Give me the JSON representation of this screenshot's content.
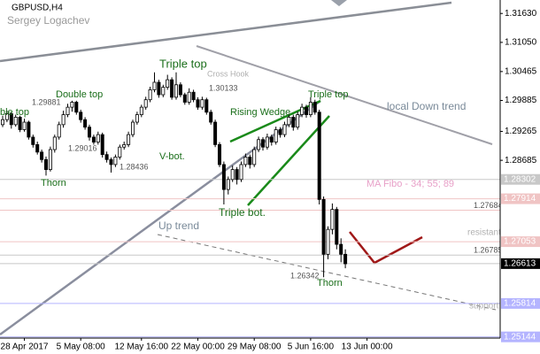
{
  "chart_data": {
    "type": "candlestick",
    "title": "GBPUSD,H4",
    "subtitle": "Sergey Logachev",
    "categories": [
      null,
      null,
      null,
      null,
      null,
      "28 Apr 2017",
      null,
      null,
      null,
      null,
      null,
      null,
      null,
      null,
      null,
      null,
      null,
      null,
      "5 May 08:00",
      null,
      null,
      null,
      null,
      null,
      null,
      null,
      null,
      null,
      null,
      null,
      null,
      null,
      "12 May 16:00",
      null,
      null,
      null,
      null,
      null,
      null,
      null,
      null,
      null,
      null,
      null,
      null,
      "22 May 00:00",
      null,
      null,
      null,
      null,
      null,
      null,
      null,
      null,
      null,
      null,
      null,
      null,
      "29 May 08:00",
      null,
      null,
      null,
      null,
      null,
      null,
      null,
      null,
      null,
      null,
      null,
      null,
      "5 Jun 16:00",
      null,
      null,
      null,
      null,
      null,
      null,
      null,
      null,
      null,
      null,
      null,
      null,
      "13 Jun 00:00",
      null,
      null,
      null,
      null,
      null
    ],
    "ohlc": [
      [
        1.294,
        1.2958,
        1.2935,
        1.295
      ],
      [
        1.295,
        1.2968,
        1.2945,
        1.2962
      ],
      [
        1.2962,
        1.2965,
        1.2932,
        1.294
      ],
      [
        1.294,
        1.296,
        1.2936,
        1.2955
      ],
      [
        1.2955,
        1.2958,
        1.2925,
        1.293
      ],
      [
        1.293,
        1.2952,
        1.2926,
        1.2945
      ],
      [
        1.2945,
        1.2948,
        1.291,
        1.2915
      ],
      [
        1.2915,
        1.292,
        1.2894,
        1.29
      ],
      [
        1.29,
        1.2906,
        1.288,
        1.2885
      ],
      [
        1.2885,
        1.289,
        1.2864,
        1.287
      ],
      [
        1.287,
        1.2876,
        1.2838,
        1.285
      ],
      [
        1.285,
        1.2896,
        1.2846,
        1.289
      ],
      [
        1.289,
        1.292,
        1.2884,
        1.2915
      ],
      [
        1.2915,
        1.2946,
        1.291,
        1.294
      ],
      [
        1.294,
        1.2968,
        1.2934,
        1.296
      ],
      [
        1.296,
        1.2982,
        1.2955,
        1.2975
      ],
      [
        1.2975,
        1.2988,
        1.2966,
        1.2985
      ],
      [
        1.2985,
        1.2988,
        1.296,
        1.2965
      ],
      [
        1.2965,
        1.297,
        1.2944,
        1.295
      ],
      [
        1.295,
        1.2955,
        1.293,
        1.2935
      ],
      [
        1.2935,
        1.294,
        1.2908,
        1.2915
      ],
      [
        1.2915,
        1.292,
        1.29,
        1.2905
      ],
      [
        1.2905,
        1.2926,
        1.29,
        1.292
      ],
      [
        1.292,
        1.2924,
        1.2874,
        1.288
      ],
      [
        1.288,
        1.2886,
        1.2864,
        1.287
      ],
      [
        1.287,
        1.2874,
        1.2844,
        1.286
      ],
      [
        1.286,
        1.288,
        1.2855,
        1.2875
      ],
      [
        1.2875,
        1.29,
        1.287,
        1.2895
      ],
      [
        1.2895,
        1.2906,
        1.289,
        1.29
      ],
      [
        1.29,
        1.2926,
        1.2895,
        1.292
      ],
      [
        1.292,
        1.295,
        1.2915,
        1.2945
      ],
      [
        1.2945,
        1.2966,
        1.294,
        1.296
      ],
      [
        1.296,
        1.298,
        1.2955,
        1.2975
      ],
      [
        1.2975,
        1.2996,
        1.297,
        1.299
      ],
      [
        1.299,
        1.3016,
        1.2985,
        1.301
      ],
      [
        1.301,
        1.3045,
        1.3005,
        1.3025
      ],
      [
        1.3025,
        1.303,
        1.2994,
        1.3
      ],
      [
        1.3,
        1.302,
        1.2995,
        1.3015
      ],
      [
        1.3015,
        1.304,
        1.301,
        1.303
      ],
      [
        1.303,
        1.3035,
        1.299,
        1.2995
      ],
      [
        1.2995,
        1.3045,
        1.299,
        1.302
      ],
      [
        1.302,
        1.3025,
        1.2995,
        1.3
      ],
      [
        1.3,
        1.3004,
        1.298,
        1.2985
      ],
      [
        1.2985,
        1.3013,
        1.298,
        1.3005
      ],
      [
        1.3005,
        1.301,
        1.2985,
        1.299
      ],
      [
        1.299,
        1.2995,
        1.297,
        1.2975
      ],
      [
        1.2975,
        1.2996,
        1.297,
        1.299
      ],
      [
        1.299,
        1.2994,
        1.296,
        1.2965
      ],
      [
        1.2965,
        1.297,
        1.294,
        1.2945
      ],
      [
        1.2945,
        1.295,
        1.2895,
        1.29
      ],
      [
        1.29,
        1.2905,
        1.2855,
        1.286
      ],
      [
        1.286,
        1.2866,
        1.278,
        1.281
      ],
      [
        1.281,
        1.2836,
        1.28,
        1.283
      ],
      [
        1.283,
        1.2858,
        1.2825,
        1.285
      ],
      [
        1.285,
        1.2855,
        1.282,
        1.283
      ],
      [
        1.283,
        1.2866,
        1.2825,
        1.286
      ],
      [
        1.286,
        1.2882,
        1.2855,
        1.2875
      ],
      [
        1.2875,
        1.288,
        1.2852,
        1.286
      ],
      [
        1.286,
        1.2896,
        1.2855,
        1.289
      ],
      [
        1.289,
        1.2916,
        1.2885,
        1.291
      ],
      [
        1.291,
        1.2915,
        1.2888,
        1.2895
      ],
      [
        1.2895,
        1.2922,
        1.289,
        1.2915
      ],
      [
        1.2915,
        1.292,
        1.2898,
        1.2905
      ],
      [
        1.2905,
        1.2936,
        1.29,
        1.293
      ],
      [
        1.293,
        1.2935,
        1.2914,
        1.292
      ],
      [
        1.292,
        1.2946,
        1.2915,
        1.294
      ],
      [
        1.294,
        1.2962,
        1.2935,
        1.2955
      ],
      [
        1.2955,
        1.296,
        1.2928,
        1.2935
      ],
      [
        1.2935,
        1.2966,
        1.293,
        1.296
      ],
      [
        1.296,
        1.2982,
        1.2955,
        1.2975
      ],
      [
        1.2975,
        1.298,
        1.2954,
        1.296
      ],
      [
        1.296,
        1.2995,
        1.2955,
        1.2985
      ],
      [
        1.2985,
        1.299,
        1.296,
        1.2965
      ],
      [
        1.2965,
        1.297,
        1.278,
        1.279
      ],
      [
        1.279,
        1.2796,
        1.2634,
        1.268
      ],
      [
        1.268,
        1.2736,
        1.267,
        1.273
      ],
      [
        1.273,
        1.2782,
        1.272,
        1.277
      ],
      [
        1.277,
        1.2775,
        1.269,
        1.27
      ],
      [
        1.27,
        1.2712,
        1.2664,
        1.268
      ],
      [
        1.268,
        1.269,
        1.2652,
        1.2661
      ],
      null,
      null,
      null,
      null,
      null,
      null,
      null,
      null,
      null,
      null
    ],
    "ylim": [
      1.2512,
      1.319
    ],
    "yticks": [
      {
        "value": 1.3163,
        "label": "1.31630"
      },
      {
        "value": 1.3105,
        "label": "1.31050"
      },
      {
        "value": 1.30465,
        "label": "1.30465"
      },
      {
        "value": 1.29885,
        "label": "1.29885"
      },
      {
        "value": 1.29265,
        "label": "1.29265"
      },
      {
        "value": 1.28685,
        "label": "1.28685"
      }
    ],
    "levels": [
      {
        "value": 1.28302,
        "color": "#c8c8c8",
        "box": true
      },
      {
        "value": 1.27914,
        "color": "#f0c4c4",
        "box": true
      },
      {
        "value": 1.27684,
        "color": "#f0c4c4",
        "box": false
      },
      {
        "value": 1.27053,
        "color": "#f0c4c4",
        "box": true
      },
      {
        "value": 1.26785,
        "color": "#c8c8c8",
        "box": false
      },
      {
        "value": 1.26613,
        "color": "#c8c8c8",
        "box": true,
        "box_color": "#000000"
      },
      {
        "value": 1.25814,
        "color": "#b4b4ff",
        "box": true
      },
      {
        "value": 1.25144,
        "color": "#b4b4ff",
        "box": true
      }
    ],
    "annotations": [
      "ble top",
      1.29881,
      "Double top",
      "Triple top",
      "Cross Hook",
      1.30133,
      "Rising Wedge",
      "Triple top",
      "local Down trend",
      1.29016,
      "V-bot.",
      1.28436,
      "Thorn",
      "MA Fibo - 34; 55; 89",
      "Triple bot.",
      "Up trend",
      "resistant",
      1.26342,
      "Thorn",
      "support"
    ]
  }
}
